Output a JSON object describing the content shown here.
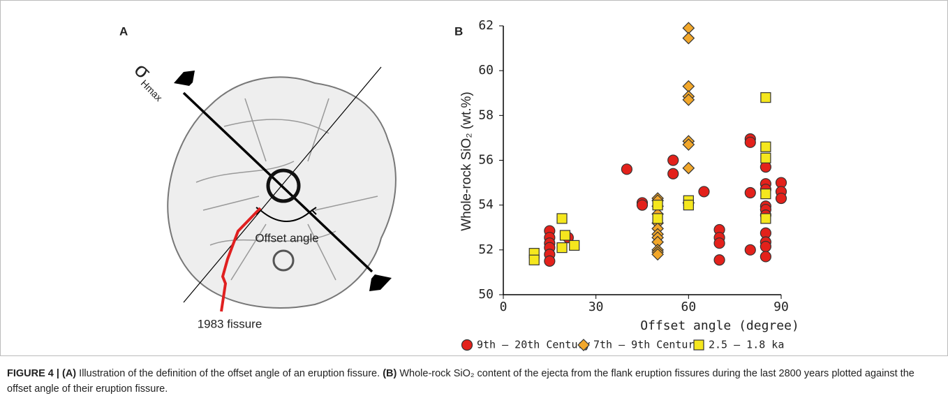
{
  "panel_a": {
    "label": "A",
    "sigma": "σ",
    "sigma_subscript": "Hmax",
    "offset_label": "Offset angle",
    "fissure_label": "1983 fissure"
  },
  "chart_data": {
    "type": "scatter",
    "panel_label": "B",
    "xlabel": "Offset angle (degree)",
    "ylabel": "Whole-rock SiO₂ (wt.%)",
    "xlim": [
      0,
      90
    ],
    "ylim": [
      50,
      62
    ],
    "xticks": [
      0,
      30,
      60,
      90
    ],
    "yticks": [
      50,
      52,
      54,
      56,
      58,
      60,
      62
    ],
    "legend": "bottom",
    "series": [
      {
        "name": "9th – 20th Century",
        "color": "#e3211b",
        "marker": "circle",
        "x": [
          15,
          15,
          15,
          15,
          15,
          15,
          21,
          40,
          45,
          45,
          55,
          55,
          65,
          70,
          70,
          70,
          70,
          80,
          80,
          80,
          80,
          85,
          85,
          85,
          85,
          85,
          85,
          85,
          85,
          85,
          85,
          90,
          90,
          90
        ],
        "values": [
          52.85,
          52.55,
          52.3,
          52.1,
          51.8,
          51.5,
          52.55,
          55.6,
          54.1,
          54.0,
          56.0,
          55.4,
          54.6,
          52.9,
          52.55,
          52.3,
          51.55,
          56.95,
          56.8,
          54.55,
          52.0,
          55.7,
          54.95,
          54.7,
          53.95,
          53.8,
          53.55,
          52.75,
          52.35,
          52.15,
          51.7,
          55.0,
          54.6,
          54.3
        ]
      },
      {
        "name": "7th – 9th Century",
        "color": "#f2a72a",
        "marker": "diamond",
        "x": [
          50,
          50,
          50,
          50,
          50,
          50,
          50,
          50,
          50,
          50,
          50,
          50,
          60,
          60,
          60,
          60,
          60,
          60,
          60,
          60,
          60
        ],
        "values": [
          54.3,
          54.2,
          53.95,
          53.6,
          53.2,
          52.95,
          52.7,
          52.55,
          52.35,
          52.0,
          51.9,
          51.8,
          61.9,
          61.45,
          59.3,
          58.85,
          58.7,
          56.85,
          56.7,
          55.65,
          54.1
        ]
      },
      {
        "name": "2.5 – 1.8 ka",
        "color": "#f5e71e",
        "marker": "square",
        "x": [
          10,
          10,
          19,
          19,
          20,
          23,
          50,
          50,
          60,
          60,
          85,
          85,
          85,
          85,
          85
        ],
        "values": [
          51.85,
          51.55,
          53.4,
          52.1,
          52.65,
          52.2,
          54.0,
          53.4,
          54.2,
          54.0,
          58.8,
          56.6,
          56.1,
          54.5,
          53.4
        ]
      }
    ]
  },
  "caption": {
    "figure_label": "FIGURE 4 | ",
    "part_a_label": "(A)",
    "part_a_text": " Illustration of the definition of the offset angle of an eruption fissure. ",
    "part_b_label": "(B)",
    "part_b_text": " Whole-rock SiO₂ content of the ejecta from the flank eruption fissures during the last 2800 years plotted against the offset angle of their eruption fissure."
  }
}
